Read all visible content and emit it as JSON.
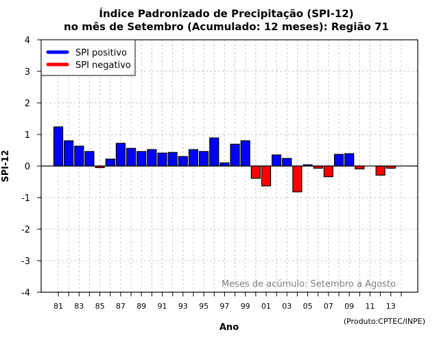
{
  "chart_data": {
    "type": "bar",
    "title": [
      "Índice Padronizado de Precipitação (SPI-12)",
      "no mês de Setembro (Acumulado: 12 meses): Região 71"
    ],
    "xlabel": "Ano",
    "ylabel": "SPI-12",
    "ylim": [
      -4,
      4
    ],
    "yticks": [
      "4",
      "3",
      "2",
      "1",
      "0",
      "-1",
      "-2",
      "-3",
      "-4"
    ],
    "ytick_values": [
      4,
      3,
      2,
      1,
      0,
      -1,
      -2,
      -3,
      -4
    ],
    "xtick_labels": [
      "81",
      "83",
      "85",
      "87",
      "89",
      "91",
      "93",
      "95",
      "97",
      "99",
      "01",
      "03",
      "05",
      "07",
      "09",
      "11",
      "13"
    ],
    "grid": true,
    "categories": [
      "1981",
      "1982",
      "1983",
      "1984",
      "1985",
      "1986",
      "1987",
      "1988",
      "1989",
      "1990",
      "1991",
      "1992",
      "1993",
      "1994",
      "1995",
      "1996",
      "1997",
      "1998",
      "1999",
      "2000",
      "2001",
      "2002",
      "2003",
      "2004",
      "2005",
      "2006",
      "2007",
      "2008",
      "2009",
      "2010",
      "2011",
      "2012",
      "2013",
      "2014"
    ],
    "values": [
      1.24,
      0.8,
      0.63,
      0.46,
      -0.05,
      0.22,
      0.72,
      0.56,
      0.46,
      0.52,
      0.41,
      0.43,
      0.3,
      0.52,
      0.46,
      0.89,
      0.1,
      0.69,
      0.8,
      -0.39,
      -0.63,
      0.35,
      0.24,
      -0.82,
      0.04,
      -0.07,
      -0.34,
      0.37,
      0.39,
      -0.09,
      0.0,
      -0.29,
      -0.07,
      0.0
    ],
    "legend": {
      "position": "top-left",
      "entries": [
        {
          "label": "SPI positivo",
          "color": "#0000ff"
        },
        {
          "label": "SPI negativo",
          "color": "#ff0000"
        }
      ]
    },
    "annotation": "Meses de acúmulo: Setembro a Agosto",
    "credit": "(Produto:CPTEC/INPE)",
    "colors": {
      "positive": "#0000ff",
      "negative": "#ff0000",
      "grid": "#c8c8c8",
      "annotation": "#808080"
    }
  }
}
